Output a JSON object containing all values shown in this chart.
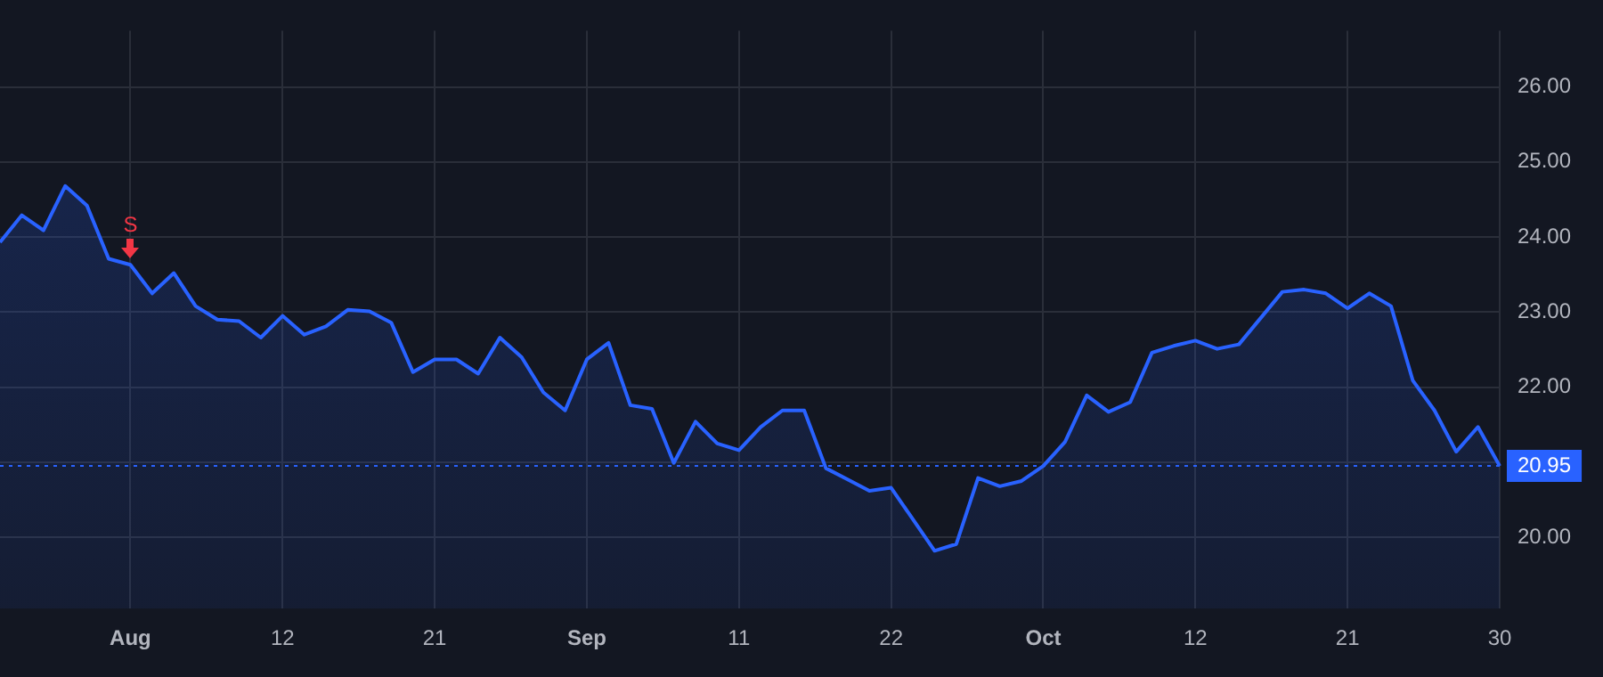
{
  "chart_data": {
    "type": "area",
    "categories": [
      null,
      null,
      null,
      null,
      null,
      null,
      "Aug",
      null,
      null,
      null,
      null,
      null,
      null,
      "12",
      null,
      null,
      null,
      null,
      null,
      null,
      "21",
      null,
      null,
      null,
      null,
      null,
      null,
      "Sep",
      null,
      null,
      null,
      null,
      null,
      null,
      "11",
      null,
      null,
      null,
      null,
      null,
      null,
      "22",
      null,
      null,
      null,
      null,
      null,
      null,
      "Oct",
      null,
      null,
      null,
      null,
      null,
      null,
      "12",
      null,
      null,
      null,
      null,
      null,
      null,
      "21",
      null,
      null,
      null,
      null,
      null,
      null,
      "30"
    ],
    "series": [
      {
        "color": "#2962ff",
        "values": [
          23.93,
          24.29,
          24.09,
          24.68,
          24.42,
          23.71,
          23.63,
          23.25,
          23.52,
          23.08,
          22.9,
          22.88,
          22.66,
          22.95,
          22.7,
          22.81,
          23.03,
          23.01,
          22.86,
          22.2,
          22.37,
          22.37,
          22.18,
          22.66,
          22.4,
          21.93,
          21.69,
          22.37,
          22.59,
          21.76,
          21.71,
          20.99,
          21.54,
          21.25,
          21.16,
          21.47,
          21.69,
          21.69,
          20.92,
          20.77,
          20.62,
          20.66,
          20.24,
          19.82,
          19.91,
          20.79,
          20.68,
          20.75,
          20.95,
          21.27,
          21.89,
          21.67,
          21.8,
          22.46,
          22.55,
          22.62,
          22.51,
          22.57,
          22.92,
          23.27,
          23.3,
          23.25,
          23.05,
          23.25,
          23.08,
          22.09,
          21.69,
          21.14,
          21.47,
          20.95
        ]
      }
    ],
    "ylim": [
      19.05,
      26.75
    ],
    "yticks": [
      {
        "value": 20,
        "label": "20.00"
      },
      {
        "value": 21,
        "label": null
      },
      {
        "value": 22,
        "label": "22.00"
      },
      {
        "value": 23,
        "label": "23.00"
      },
      {
        "value": 24,
        "label": "24.00"
      },
      {
        "value": 25,
        "label": "25.00"
      },
      {
        "value": 26,
        "label": "26.00"
      }
    ],
    "ref_lines": [
      {
        "axis": "y",
        "value": 20.95,
        "label": "20.95",
        "color": "#2962ff",
        "line_style": "dotted"
      }
    ],
    "annotations": [
      {
        "text": "S",
        "x": "Aug",
        "y": 23.63
      }
    ],
    "grid": true,
    "legend": false,
    "marker": "none",
    "line_style": "solid"
  }
}
